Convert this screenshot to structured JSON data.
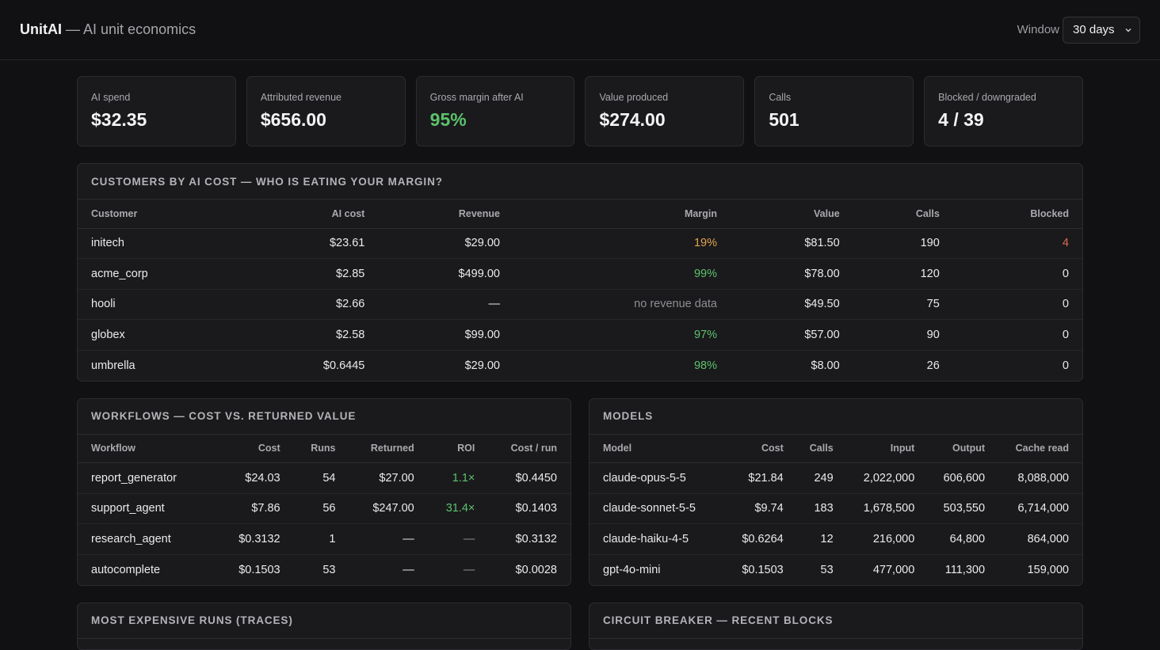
{
  "header": {
    "brand": "UnitAI",
    "subtitle": "— AI unit economics",
    "window_label": "Window",
    "window_value": "30 days",
    "window_icon": "chevron-down-icon"
  },
  "kpis": [
    {
      "label": "AI spend",
      "value": "$32.35",
      "tone": "default"
    },
    {
      "label": "Attributed revenue",
      "value": "$656.00",
      "tone": "default"
    },
    {
      "label": "Gross margin after AI",
      "value": "95%",
      "tone": "green"
    },
    {
      "label": "Value produced",
      "value": "$274.00",
      "tone": "default"
    },
    {
      "label": "Calls",
      "value": "501",
      "tone": "default"
    },
    {
      "label": "Blocked / downgraded",
      "value": "4 / 39",
      "tone": "default"
    }
  ],
  "customers": {
    "title": "CUSTOMERS BY AI COST — WHO IS EATING YOUR MARGIN?",
    "columns": [
      "Customer",
      "AI cost",
      "Revenue",
      "Margin",
      "Value",
      "Calls",
      "Blocked"
    ],
    "rows": [
      [
        "initech",
        "$23.61",
        "$29.00",
        "19%",
        "$81.50",
        "190",
        "4"
      ],
      [
        "acme_corp",
        "$2.85",
        "$499.00",
        "99%",
        "$78.00",
        "120",
        "0"
      ],
      [
        "hooli",
        "$2.66",
        "—",
        "no revenue data",
        "$49.50",
        "75",
        "0"
      ],
      [
        "globex",
        "$2.58",
        "$99.00",
        "97%",
        "$57.00",
        "90",
        "0"
      ],
      [
        "umbrella",
        "$0.6445",
        "$29.00",
        "98%",
        "$8.00",
        "26",
        "0"
      ]
    ],
    "margin_tones": [
      "orange",
      "green",
      "muted",
      "green",
      "green"
    ],
    "blocked_tones": [
      "red",
      "default",
      "default",
      "default",
      "default"
    ]
  },
  "workflows": {
    "title": "WORKFLOWS — COST VS. RETURNED VALUE",
    "columns": [
      "Workflow",
      "Cost",
      "Runs",
      "Returned",
      "ROI",
      "Cost / run"
    ],
    "rows": [
      [
        "report_generator",
        "$24.03",
        "54",
        "$27.00",
        "1.1×",
        "$0.4450"
      ],
      [
        "support_agent",
        "$7.86",
        "56",
        "$247.00",
        "31.4×",
        "$0.1403"
      ],
      [
        "research_agent",
        "$0.3132",
        "1",
        "—",
        "—",
        "$0.3132"
      ],
      [
        "autocomplete",
        "$0.1503",
        "53",
        "—",
        "—",
        "$0.0028"
      ]
    ],
    "roi_tones": [
      "green",
      "green",
      "muted",
      "muted"
    ]
  },
  "models": {
    "title": "MODELS",
    "columns": [
      "Model",
      "Cost",
      "Calls",
      "Input",
      "Output",
      "Cache read"
    ],
    "rows": [
      [
        "claude-opus-5-5",
        "$21.84",
        "249",
        "2,022,000",
        "606,600",
        "8,088,000"
      ],
      [
        "claude-sonnet-5-5",
        "$9.74",
        "183",
        "1,678,500",
        "503,550",
        "6,714,000"
      ],
      [
        "claude-haiku-4-5",
        "$0.6264",
        "12",
        "216,000",
        "64,800",
        "864,000"
      ],
      [
        "gpt-4o-mini",
        "$0.1503",
        "53",
        "477,000",
        "111,300",
        "159,000"
      ]
    ]
  },
  "traces": {
    "title": "MOST EXPENSIVE RUNS (TRACES)"
  },
  "breaker": {
    "title": "CIRCUIT BREAKER — RECENT BLOCKS"
  }
}
